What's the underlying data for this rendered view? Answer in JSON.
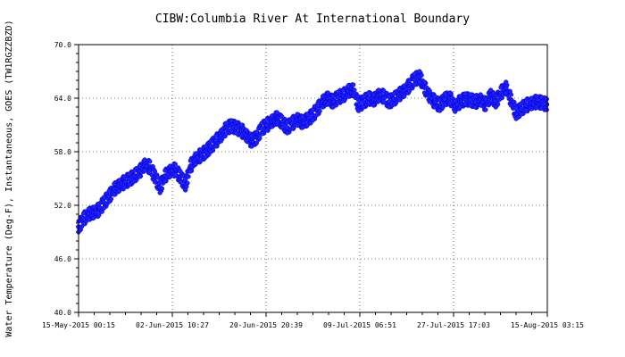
{
  "chart_data": {
    "type": "scatter",
    "title": "CIBW:Columbia River At International Boundary",
    "xlabel": "",
    "ylabel": "Water Temperature (Deg-F), Instantaneous, GOES (TW1RGZZBZD)",
    "ylim": [
      40.0,
      70.0
    ],
    "y_ticks": [
      "40.0",
      "46.0",
      "52.0",
      "58.0",
      "64.0",
      "70.0"
    ],
    "x_ticks": [
      "15-May-2015 00:15",
      "02-Jun-2015 10:27",
      "20-Jun-2015 20:39",
      "09-Jul-2015 06:51",
      "27-Jul-2015 17:03",
      "15-Aug-2015 03:15"
    ],
    "xlim": [
      "15-May-2015 00:15",
      "15-Aug-2015 03:15"
    ],
    "grid": true,
    "marker_color": "#1f1fff",
    "marker_outline": "#0000c8",
    "series": [
      {
        "x": [
          "15-May-2015 00:15",
          "16-May-2015 00:15",
          "17-May-2015 00:15",
          "18-May-2015 00:15",
          "19-May-2015 00:15",
          "20-May-2015 00:15",
          "21-May-2015 00:15",
          "22-May-2015 00:15",
          "23-May-2015 00:15",
          "24-May-2015 00:15",
          "25-May-2015 00:15",
          "26-May-2015 00:15",
          "27-May-2015 00:15",
          "28-May-2015 00:15",
          "29-May-2015 00:15",
          "30-May-2015 00:15",
          "31-May-2015 00:15",
          "01-Jun-2015 00:15",
          "02-Jun-2015 00:15",
          "03-Jun-2015 00:15",
          "04-Jun-2015 00:15",
          "05-Jun-2015 00:15",
          "06-Jun-2015 00:15",
          "07-Jun-2015 00:15",
          "08-Jun-2015 00:15",
          "09-Jun-2015 00:15",
          "10-Jun-2015 00:15",
          "11-Jun-2015 00:15",
          "12-Jun-2015 00:15",
          "13-Jun-2015 00:15",
          "14-Jun-2015 00:15",
          "15-Jun-2015 00:15",
          "16-Jun-2015 00:15",
          "17-Jun-2015 00:15",
          "18-Jun-2015 00:15",
          "19-Jun-2015 00:15",
          "20-Jun-2015 00:15",
          "21-Jun-2015 00:15",
          "22-Jun-2015 00:15",
          "23-Jun-2015 00:15",
          "24-Jun-2015 00:15",
          "25-Jun-2015 00:15",
          "26-Jun-2015 00:15",
          "27-Jun-2015 00:15",
          "28-Jun-2015 00:15",
          "29-Jun-2015 00:15",
          "30-Jun-2015 00:15",
          "01-Jul-2015 00:15",
          "02-Jul-2015 00:15",
          "03-Jul-2015 00:15",
          "04-Jul-2015 00:15",
          "05-Jul-2015 00:15",
          "06-Jul-2015 00:15",
          "07-Jul-2015 00:15",
          "08-Jul-2015 00:15",
          "09-Jul-2015 00:15",
          "10-Jul-2015 00:15",
          "11-Jul-2015 00:15",
          "12-Jul-2015 00:15",
          "13-Jul-2015 00:15",
          "14-Jul-2015 00:15",
          "15-Jul-2015 00:15",
          "16-Jul-2015 00:15",
          "17-Jul-2015 00:15",
          "18-Jul-2015 00:15",
          "19-Jul-2015 00:15",
          "20-Jul-2015 00:15",
          "21-Jul-2015 00:15",
          "22-Jul-2015 00:15",
          "23-Jul-2015 00:15",
          "24-Jul-2015 00:15",
          "25-Jul-2015 00:15",
          "26-Jul-2015 00:15",
          "27-Jul-2015 00:15",
          "28-Jul-2015 00:15",
          "29-Jul-2015 00:15",
          "30-Jul-2015 00:15",
          "31-Jul-2015 00:15",
          "01-Aug-2015 00:15",
          "02-Aug-2015 00:15",
          "03-Aug-2015 00:15",
          "04-Aug-2015 00:15",
          "05-Aug-2015 00:15",
          "06-Aug-2015 00:15",
          "07-Aug-2015 00:15",
          "08-Aug-2015 00:15",
          "09-Aug-2015 00:15",
          "10-Aug-2015 00:15",
          "11-Aug-2015 00:15",
          "12-Aug-2015 00:15",
          "13-Aug-2015 00:15",
          "14-Aug-2015 00:15",
          "15-Aug-2015 00:15"
        ],
        "y": [
          49.6,
          50.5,
          51.0,
          51.2,
          51.5,
          52.3,
          53.0,
          53.8,
          54.2,
          54.6,
          54.9,
          55.3,
          55.8,
          56.5,
          56.3,
          55.2,
          54.0,
          55.3,
          55.8,
          56.0,
          55.2,
          54.3,
          56.4,
          57.2,
          57.6,
          58.0,
          58.6,
          59.2,
          59.8,
          60.6,
          60.9,
          60.7,
          60.4,
          59.8,
          59.2,
          59.6,
          60.6,
          61.0,
          61.4,
          61.8,
          61.3,
          60.7,
          61.2,
          61.6,
          61.3,
          61.6,
          62.1,
          62.8,
          63.6,
          64.0,
          63.6,
          64.1,
          64.3,
          64.8,
          64.9,
          63.2,
          63.6,
          64.0,
          63.8,
          64.3,
          64.2,
          63.6,
          63.9,
          64.4,
          64.8,
          65.4,
          66.1,
          66.4,
          65.2,
          64.2,
          63.6,
          63.2,
          63.9,
          64.0,
          63.1,
          63.6,
          63.9,
          63.8,
          63.6,
          63.8,
          63.3,
          64.3,
          63.6,
          64.6,
          65.2,
          63.8,
          62.3,
          62.8,
          63.2,
          63.4,
          63.6,
          63.5,
          63.3
        ]
      }
    ]
  }
}
